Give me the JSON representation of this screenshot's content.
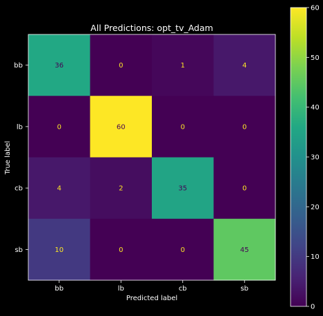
{
  "chart_data": {
    "type": "heatmap",
    "title": "All Predictions: opt_tv_Adam",
    "xlabel": "Predicted label",
    "ylabel": "True label",
    "x_categories": [
      "bb",
      "lb",
      "cb",
      "sb"
    ],
    "y_categories": [
      "bb",
      "lb",
      "cb",
      "sb"
    ],
    "matrix": [
      [
        36,
        0,
        1,
        4
      ],
      [
        0,
        60,
        0,
        0
      ],
      [
        4,
        2,
        35,
        0
      ],
      [
        10,
        0,
        0,
        45
      ]
    ],
    "colormap": "viridis",
    "vmin": 0,
    "vmax": 60,
    "colorbar_ticks": [
      0,
      10,
      20,
      30,
      40,
      50,
      60
    ],
    "colors": {
      "background": "#000000",
      "text": "#ffffff",
      "text_on_dark": "#fde725",
      "text_on_light": "#440154"
    }
  }
}
